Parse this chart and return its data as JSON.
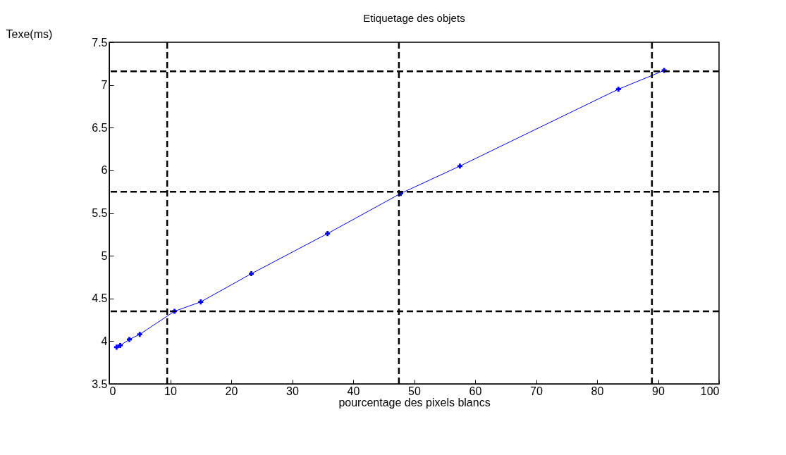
{
  "chart_data": {
    "type": "line",
    "title": "Etiquetage des objets",
    "xlabel": "pourcentage des pixels blancs",
    "ylabel": "Texe(ms)",
    "x": [
      1.2,
      1.8,
      3.3,
      5,
      10.7,
      15,
      23.3,
      35.8,
      47.8,
      57.5,
      83.5,
      91
    ],
    "series": [
      {
        "color": "#0000ff",
        "values": [
          3.93,
          3.95,
          4.02,
          4.08,
          4.35,
          4.46,
          4.79,
          5.26,
          5.73,
          6.05,
          6.95,
          7.17
        ]
      }
    ],
    "marker": "cross",
    "line_style": "solid",
    "xlim": [
      0,
      100
    ],
    "xticks": [
      0,
      10,
      20,
      30,
      40,
      50,
      60,
      70,
      80,
      90,
      100
    ],
    "ylim": [
      3.5,
      7.5
    ],
    "yticks": [
      3.5,
      {
        "value": 4,
        "label": "4"
      },
      4.5,
      {
        "value": 5,
        "label": "5"
      },
      5.5,
      {
        "value": 6,
        "label": "6"
      },
      6.5,
      {
        "value": 7,
        "label": "7"
      },
      7.5
    ],
    "grid": false,
    "legend": false,
    "ref_lines": [
      {
        "axis": "y",
        "value": 4.35,
        "color": "#000000",
        "line_style": "dashed"
      },
      {
        "axis": "y",
        "value": 5.75,
        "color": "#000000",
        "line_style": "dashed"
      },
      {
        "axis": "y",
        "value": 7.16,
        "color": "#000000",
        "line_style": "dashed"
      },
      {
        "axis": "x",
        "value": 9.5,
        "color": "#000000",
        "line_style": "dashed"
      },
      {
        "axis": "x",
        "value": 47.5,
        "color": "#000000",
        "line_style": "dashed"
      },
      {
        "axis": "x",
        "value": 89,
        "color": "#000000",
        "line_style": "dashed"
      }
    ]
  }
}
